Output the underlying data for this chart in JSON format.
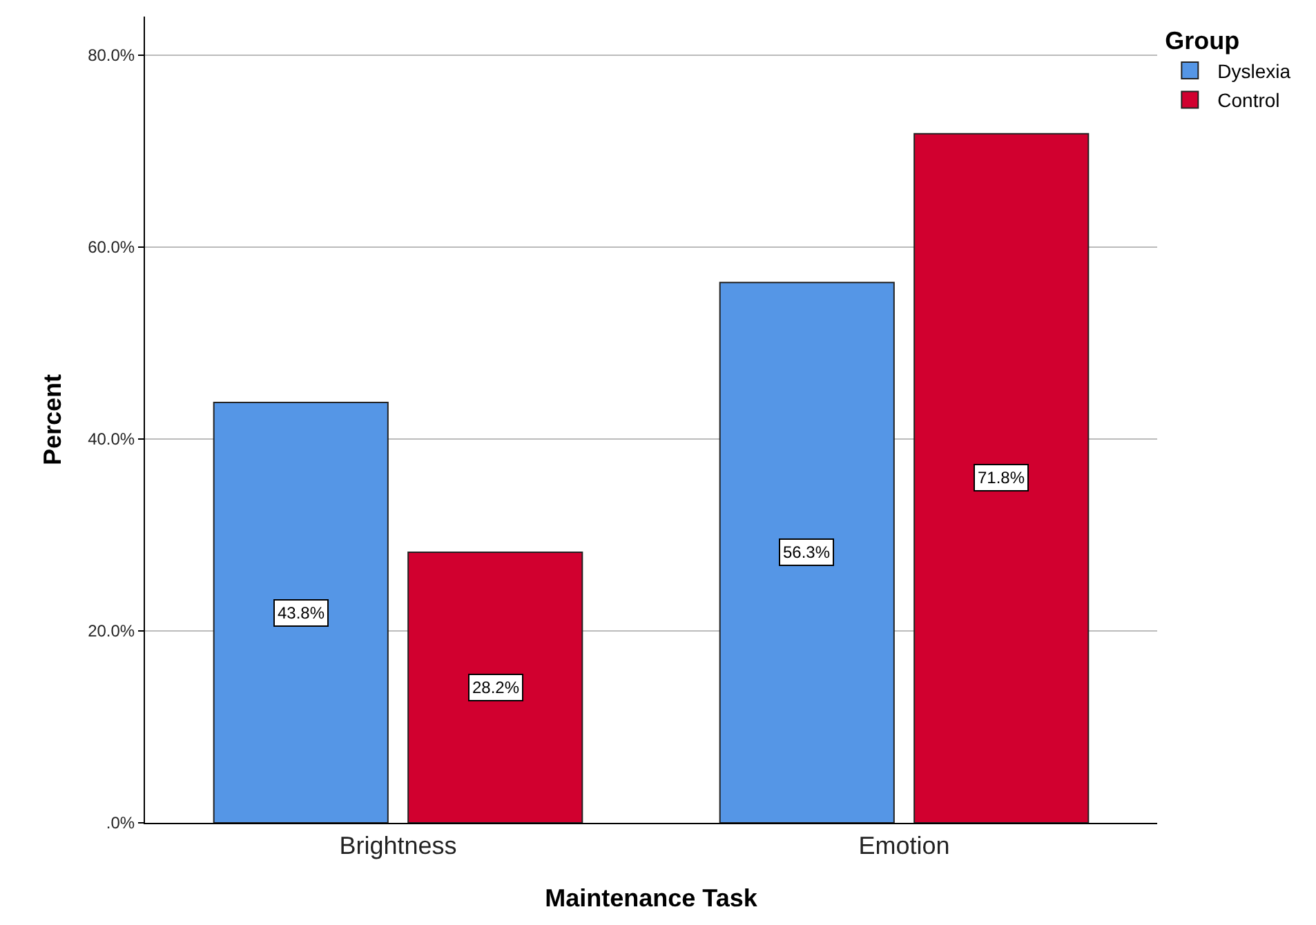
{
  "chart_data": {
    "type": "bar",
    "xlabel": "Maintenance Task",
    "ylabel": "Percent",
    "legend_title": "Group",
    "categories": [
      "Brightness",
      "Emotion"
    ],
    "series": [
      {
        "name": "Dyslexia",
        "color": "#5596e6",
        "values": [
          43.8,
          56.3
        ],
        "value_labels": [
          "43.8%",
          "56.3%"
        ]
      },
      {
        "name": "Control",
        "color": "#d1002f",
        "values": [
          28.2,
          71.8
        ],
        "value_labels": [
          "28.2%",
          "71.8%"
        ]
      }
    ],
    "ylim": [
      0,
      84
    ],
    "yticks": [
      {
        "value": 0,
        "label": ".0%"
      },
      {
        "value": 20,
        "label": "20.0%"
      },
      {
        "value": 40,
        "label": "40.0%"
      },
      {
        "value": 60,
        "label": "60.0%"
      },
      {
        "value": 80,
        "label": "80.0%"
      }
    ],
    "grid": "y",
    "legend": "top right"
  }
}
